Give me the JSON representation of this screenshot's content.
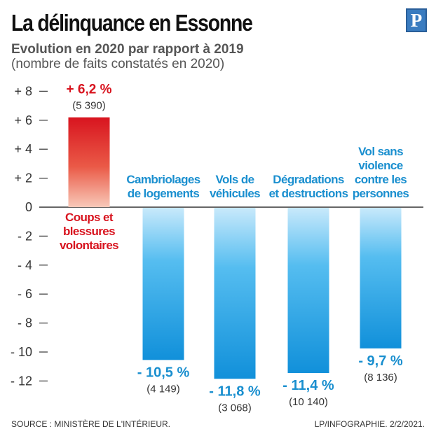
{
  "title": "La délinquance en Essonne",
  "subtitle": "Evolution en 2020 par rapport à 2019",
  "subtitle2": "(nombre de faits constatés en 2020)",
  "logo": {
    "letter": "P",
    "color": "#3a7cc0"
  },
  "footer": {
    "source": "SOURCE : MINISTÈRE DE L'INTÉRIEUR.",
    "credit": "LP/INFOGRAPHIE.  2/2/2021."
  },
  "chart_data": {
    "type": "bar",
    "title": "La délinquance en Essonne",
    "ylabel": "",
    "xlabel": "",
    "ylim": [
      -12,
      8
    ],
    "yticks": [
      8,
      6,
      4,
      2,
      0,
      -2,
      -4,
      -6,
      -8,
      -10,
      -12
    ],
    "ytick_labels": [
      "+ 8",
      "+ 6",
      "+ 4",
      "+ 2",
      "0",
      "- 2",
      "- 4",
      "- 6",
      "- 8",
      "- 10",
      "- 12"
    ],
    "colors": {
      "positive": "#d8141f",
      "negative": "#1b9ee0",
      "positive_label": "#d8141f",
      "negative_label": "#1a8fcf"
    },
    "bars": [
      {
        "category": [
          "Coups et",
          "blessures",
          "volontaires"
        ],
        "value": 6.2,
        "value_label": "+ 6,2 %",
        "count_label": "(5 390)"
      },
      {
        "category": [
          "Cambriolages",
          "de logements"
        ],
        "value": -10.5,
        "value_label": "- 10,5 %",
        "count_label": "(4 149)"
      },
      {
        "category": [
          "Vols de",
          "véhicules"
        ],
        "value": -11.8,
        "value_label": "- 11,8 %",
        "count_label": "(3 068)"
      },
      {
        "category": [
          "Dégradations",
          "et destructions"
        ],
        "value": -11.4,
        "value_label": "- 11,4 %",
        "count_label": "(10 140)"
      },
      {
        "category": [
          "Vol sans",
          "violence",
          "contre les",
          "personnes"
        ],
        "value": -9.7,
        "value_label": "- 9,7 %",
        "count_label": "(8 136)"
      }
    ]
  }
}
